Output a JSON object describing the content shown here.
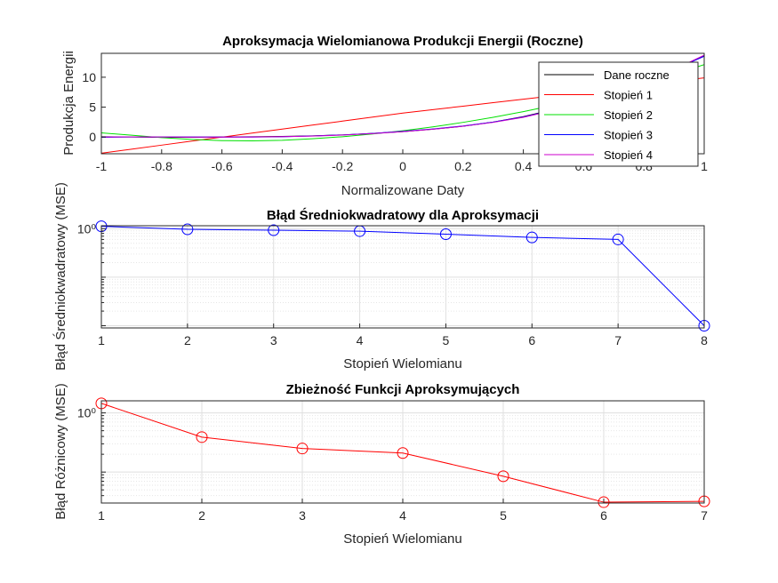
{
  "chart_data": [
    {
      "type": "line",
      "title": "Aproksymacja Wielomianowa Produkcji Energii (Roczne)",
      "xlabel": "Normalizowane Daty",
      "ylabel": "Produkcja Energii",
      "xlim": [
        -1,
        1
      ],
      "ylim": [
        -2.8,
        14
      ],
      "xticks": [
        -1,
        -0.8,
        -0.6,
        -0.4,
        -0.2,
        0,
        0.2,
        0.4,
        0.6,
        0.8,
        1
      ],
      "xtick_labels": [
        "-1",
        "-0.8",
        "-0.6",
        "-0.4",
        "-0.2",
        "0",
        "0.2",
        "0.4",
        "0.6",
        "0.8",
        "1"
      ],
      "yticks": [
        0,
        5,
        10
      ],
      "ytick_labels": [
        "0",
        "5",
        "10"
      ],
      "grid": false,
      "legend": "top-right",
      "x": [
        -1,
        -0.9,
        -0.8,
        -0.7,
        -0.6,
        -0.5,
        -0.4,
        -0.3,
        -0.2,
        -0.1,
        0,
        0.1,
        0.2,
        0.3,
        0.4,
        0.5,
        0.6,
        0.7,
        0.8,
        0.9,
        1
      ],
      "series": [
        {
          "name": "Dane roczne",
          "color": "#000000",
          "values": [
            0.05,
            0.0,
            -0.05,
            -0.05,
            0.0,
            0.05,
            0.1,
            0.2,
            0.35,
            0.6,
            0.9,
            1.3,
            1.8,
            2.5,
            3.4,
            4.6,
            6.0,
            7.5,
            9.2,
            11.3,
            13.6
          ]
        },
        {
          "name": "Stopień 1",
          "color": "#ff0000",
          "values": [
            -2.7,
            -2.03,
            -1.36,
            -0.69,
            -0.02,
            0.65,
            1.32,
            1.99,
            2.66,
            3.33,
            4.0,
            4.58,
            5.16,
            5.74,
            6.32,
            6.9,
            7.5,
            8.1,
            8.7,
            9.3,
            9.9
          ]
        },
        {
          "name": "Stopień 2",
          "color": "#00e000",
          "values": [
            0.7,
            0.3,
            -0.1,
            -0.4,
            -0.6,
            -0.65,
            -0.55,
            -0.3,
            0.05,
            0.5,
            1.05,
            1.7,
            2.45,
            3.3,
            4.25,
            5.3,
            6.45,
            7.7,
            9.05,
            10.5,
            12.1
          ]
        },
        {
          "name": "Stopień 3",
          "color": "#0000ff",
          "values": [
            -0.05,
            0.0,
            0.0,
            0.0,
            -0.02,
            -0.02,
            0.05,
            0.18,
            0.35,
            0.6,
            0.95,
            1.35,
            1.85,
            2.5,
            3.35,
            4.5,
            5.9,
            7.5,
            9.3,
            11.3,
            13.5
          ]
        },
        {
          "name": "Stopień 4",
          "color": "#cc00cc",
          "values": [
            0.0,
            0.02,
            0.0,
            -0.02,
            -0.02,
            0.0,
            0.06,
            0.16,
            0.32,
            0.56,
            0.9,
            1.3,
            1.8,
            2.45,
            3.3,
            4.45,
            5.85,
            7.45,
            9.25,
            11.3,
            13.7
          ]
        }
      ]
    },
    {
      "type": "line",
      "title": "Błąd Średniokwadratowy dla Aproksymacji",
      "xlabel": "Stopień Wielomianu",
      "ylabel": "Błąd Średniokwadratowy (MSE)",
      "yscale": "log",
      "xlim": [
        1,
        8
      ],
      "ylim": [
        0.009,
        1.15
      ],
      "xticks": [
        1,
        2,
        3,
        4,
        5,
        6,
        7,
        8
      ],
      "yticks": [
        1
      ],
      "ytick_labels": [
        "10⁰"
      ],
      "grid": true,
      "x": [
        1,
        2,
        3,
        4,
        5,
        6,
        7,
        8
      ],
      "series": [
        {
          "color": "#0000ff",
          "marker": "circle",
          "values": [
            1.12,
            0.97,
            0.93,
            0.89,
            0.77,
            0.66,
            0.6,
            0.01
          ]
        }
      ]
    },
    {
      "type": "line",
      "title": "Zbieżność Funkcji Aproksymujących",
      "xlabel": "Stopień Wielomianu",
      "ylabel": "Błąd Różnicowy (MSE)",
      "yscale": "log",
      "xlim": [
        1,
        7
      ],
      "ylim": [
        0.03,
        1.6
      ],
      "xticks": [
        1,
        2,
        3,
        4,
        5,
        6,
        7
      ],
      "yticks": [
        1
      ],
      "ytick_labels": [
        "10⁰"
      ],
      "grid": true,
      "x": [
        1,
        2,
        3,
        4,
        5,
        6,
        7
      ],
      "series": [
        {
          "color": "#ff0000",
          "marker": "circle",
          "values": [
            1.45,
            0.39,
            0.25,
            0.21,
            0.085,
            0.031,
            0.032
          ]
        }
      ]
    }
  ]
}
